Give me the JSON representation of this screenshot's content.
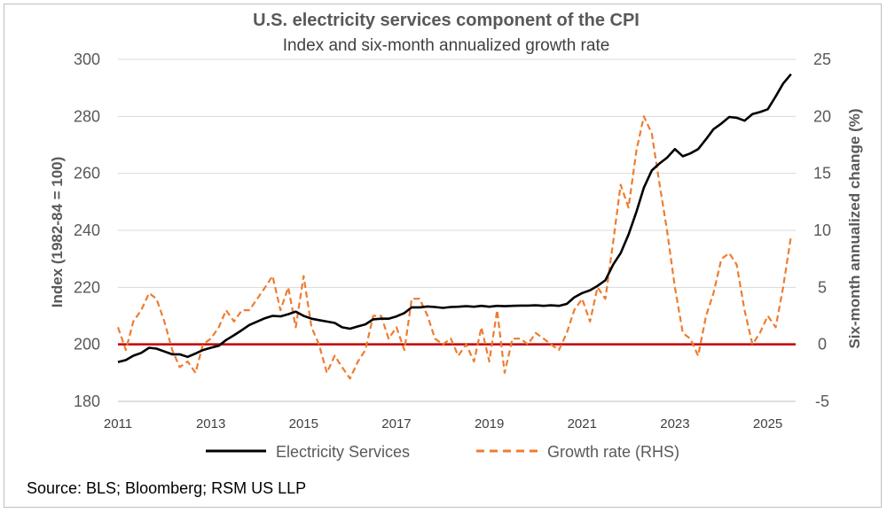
{
  "chart_data": {
    "type": "line",
    "title": "U.S. electricity services component of the CPI",
    "subtitle": "Index and six-month annualized growth rate",
    "ylabel": "Index (1982-84 = 100)",
    "y2label": "Six-month annualized change (%)",
    "ylim": [
      180,
      300
    ],
    "y2lim": [
      -5,
      25
    ],
    "xlim": [
      2011,
      2025.6
    ],
    "y_ticks": [
      "180",
      "200",
      "220",
      "240",
      "260",
      "280",
      "300"
    ],
    "y2_ticks": [
      "-5",
      "0",
      "5",
      "10",
      "15",
      "20",
      "25"
    ],
    "x_ticks": [
      "2011",
      "2013",
      "2015",
      "2017",
      "2019",
      "2021",
      "2023",
      "2025"
    ],
    "x_tick_values": [
      2011,
      2013,
      2015,
      2017,
      2019,
      2021,
      2023,
      2025
    ],
    "reference_line": {
      "axis": "y2",
      "value": 0,
      "color": "#c00000"
    },
    "series": [
      {
        "name": "Electricity Services",
        "axis": "left",
        "style": "solid",
        "color": "#000000",
        "x": [
          2011.0,
          2011.17,
          2011.33,
          2011.5,
          2011.67,
          2011.83,
          2012.0,
          2012.17,
          2012.33,
          2012.5,
          2012.67,
          2012.83,
          2013.0,
          2013.17,
          2013.33,
          2013.5,
          2013.67,
          2013.83,
          2014.0,
          2014.17,
          2014.33,
          2014.5,
          2014.67,
          2014.83,
          2015.0,
          2015.17,
          2015.33,
          2015.5,
          2015.67,
          2015.83,
          2016.0,
          2016.17,
          2016.33,
          2016.5,
          2016.67,
          2016.83,
          2017.0,
          2017.17,
          2017.33,
          2017.5,
          2017.67,
          2017.83,
          2018.0,
          2018.17,
          2018.33,
          2018.5,
          2018.67,
          2018.83,
          2019.0,
          2019.17,
          2019.33,
          2019.5,
          2019.67,
          2019.83,
          2020.0,
          2020.17,
          2020.33,
          2020.5,
          2020.67,
          2020.83,
          2021.0,
          2021.17,
          2021.33,
          2021.5,
          2021.67,
          2021.83,
          2022.0,
          2022.17,
          2022.33,
          2022.5,
          2022.67,
          2022.83,
          2023.0,
          2023.17,
          2023.33,
          2023.5,
          2023.67,
          2023.83,
          2024.0,
          2024.17,
          2024.33,
          2024.5,
          2024.67,
          2024.83,
          2025.0,
          2025.17,
          2025.33,
          2025.5
        ],
        "values": [
          193.8,
          194.5,
          196.0,
          197.0,
          198.8,
          198.5,
          197.5,
          196.5,
          196.5,
          195.6,
          196.8,
          198.0,
          198.8,
          199.5,
          201.5,
          203.2,
          205.0,
          206.8,
          208.0,
          209.2,
          210.0,
          209.8,
          210.6,
          211.5,
          210.0,
          209.0,
          208.5,
          208.0,
          207.5,
          206.0,
          205.5,
          206.3,
          207.0,
          208.8,
          209.0,
          209.0,
          209.8,
          211.0,
          213.0,
          213.0,
          213.3,
          213.1,
          212.8,
          213.1,
          213.2,
          213.4,
          213.2,
          213.5,
          213.2,
          213.5,
          213.4,
          213.5,
          213.6,
          213.6,
          213.7,
          213.5,
          213.7,
          213.5,
          214.2,
          216.5,
          218.0,
          219.0,
          220.5,
          222.5,
          228.0,
          232.0,
          238.5,
          246.5,
          255.0,
          261.0,
          263.5,
          265.5,
          268.5,
          266.0,
          267.0,
          268.5,
          272.0,
          275.5,
          277.5,
          279.8,
          279.5,
          278.5,
          280.8,
          281.5,
          282.5,
          287.0,
          291.5,
          294.8
        ]
      },
      {
        "name": "Growth rate (RHS)",
        "axis": "right",
        "style": "dashed",
        "color": "#ed7d31",
        "x": [
          2011.0,
          2011.17,
          2011.33,
          2011.5,
          2011.67,
          2011.83,
          2012.0,
          2012.17,
          2012.33,
          2012.5,
          2012.67,
          2012.83,
          2013.0,
          2013.17,
          2013.33,
          2013.5,
          2013.67,
          2013.83,
          2014.0,
          2014.17,
          2014.33,
          2014.5,
          2014.67,
          2014.83,
          2015.0,
          2015.17,
          2015.33,
          2015.5,
          2015.67,
          2015.83,
          2016.0,
          2016.17,
          2016.33,
          2016.5,
          2016.67,
          2016.83,
          2017.0,
          2017.17,
          2017.33,
          2017.5,
          2017.67,
          2017.83,
          2018.0,
          2018.17,
          2018.33,
          2018.5,
          2018.67,
          2018.83,
          2019.0,
          2019.17,
          2019.33,
          2019.5,
          2019.67,
          2019.83,
          2020.0,
          2020.17,
          2020.33,
          2020.5,
          2020.67,
          2020.83,
          2021.0,
          2021.17,
          2021.33,
          2021.5,
          2021.67,
          2021.83,
          2022.0,
          2022.17,
          2022.33,
          2022.5,
          2022.67,
          2022.83,
          2023.0,
          2023.17,
          2023.33,
          2023.5,
          2023.67,
          2023.83,
          2024.0,
          2024.17,
          2024.33,
          2024.5,
          2024.67,
          2024.83,
          2025.0,
          2025.17,
          2025.33,
          2025.5
        ],
        "values": [
          1.5,
          -0.5,
          2.0,
          3.0,
          4.5,
          4.0,
          2.0,
          -0.5,
          -2.0,
          -1.5,
          -2.5,
          0.0,
          0.5,
          1.5,
          3.0,
          2.0,
          3.0,
          3.0,
          4.0,
          5.0,
          6.0,
          3.0,
          5.0,
          1.5,
          6.0,
          1.5,
          0.0,
          -2.5,
          -1.0,
          -2.0,
          -3.0,
          -1.5,
          -0.5,
          2.5,
          2.5,
          0.5,
          1.5,
          -0.5,
          4.0,
          4.0,
          2.5,
          0.5,
          0.0,
          0.5,
          -1.0,
          0.0,
          -1.5,
          1.5,
          -1.5,
          3.0,
          -2.5,
          0.5,
          0.5,
          0.0,
          1.0,
          0.5,
          0.0,
          -0.5,
          1.0,
          3.0,
          4.0,
          2.0,
          5.0,
          4.0,
          9.0,
          14.0,
          12.0,
          17.0,
          20.0,
          18.5,
          14.0,
          10.0,
          5.0,
          1.0,
          0.5,
          -1.0,
          2.5,
          4.5,
          7.5,
          8.0,
          7.0,
          3.0,
          0.0,
          1.0,
          2.5,
          1.5,
          5.0,
          9.5
        ]
      }
    ],
    "source": "Source: BLS; Bloomberg; RSM US LLP"
  }
}
